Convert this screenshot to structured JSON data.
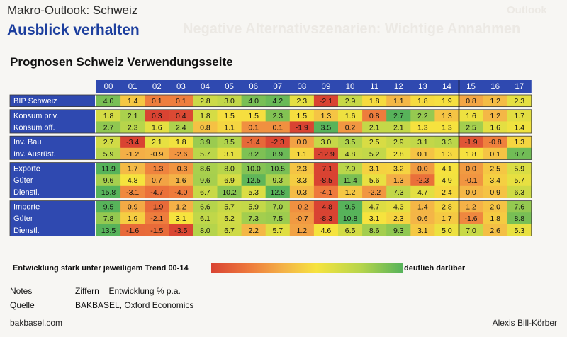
{
  "header": {
    "kicker": "Makro-Outlook: Schweiz",
    "headline": "Ausblick verhalten",
    "subtitle": "Prognosen Schweiz Verwendungsseite"
  },
  "background_ghost": {
    "line1": "Outlook",
    "line2": "Negative Alternativszenarien: Wichtige Annahmen"
  },
  "colors": {
    "header_blue": "#2f49b0",
    "scale_low": "#d94332",
    "scale_mid": "#f6e33e",
    "scale_high": "#57b35a"
  },
  "table": {
    "years": [
      "00",
      "01",
      "02",
      "03",
      "04",
      "05",
      "06",
      "07",
      "08",
      "09",
      "10",
      "11",
      "12",
      "13",
      "14",
      "15",
      "16",
      "17"
    ],
    "groups": [
      {
        "rows": [
          {
            "label": "BIP Schweiz",
            "values": [
              "4.0",
              "1.4",
              "0.1",
              "0.1",
              "2.8",
              "3.0",
              "4.0",
              "4.2",
              "2.3",
              "-2.1",
              "2.9",
              "1.8",
              "1.1",
              "1.8",
              "1.9",
              "0.8",
              "1.2",
              "2.3"
            ]
          }
        ]
      },
      {
        "rows": [
          {
            "label": "Konsum priv.",
            "values": [
              "1.8",
              "2.1",
              "0.3",
              "0.4",
              "1.8",
              "1.5",
              "1.5",
              "2.3",
              "1.5",
              "1.3",
              "1.6",
              "0.8",
              "2.7",
              "2.2",
              "1.3",
              "1.6",
              "1.2",
              "1.7"
            ]
          },
          {
            "label": "Konsum öff.",
            "values": [
              "2.7",
              "2.3",
              "1.6",
              "2.4",
              "0.8",
              "1.1",
              "0.1",
              "0.1",
              "-1.9",
              "3.5",
              "0.2",
              "2.1",
              "2.1",
              "1.3",
              "1.3",
              "2.5",
              "1.6",
              "1.4"
            ]
          }
        ]
      },
      {
        "rows": [
          {
            "label": "Inv. Bau",
            "values": [
              "2.7",
              "-3.4",
              "2.1",
              "1.8",
              "3.9",
              "3.5",
              "-1.4",
              "-2.3",
              "0.0",
              "3.0",
              "3.5",
              "2.5",
              "2.9",
              "3.1",
              "3.3",
              "-1.9",
              "-0.8",
              "1.3"
            ]
          },
          {
            "label": "Inv. Ausrüst.",
            "values": [
              "5.9",
              "-1.2",
              "-0.9",
              "-2.6",
              "5.7",
              "3.1",
              "8.2",
              "8.9",
              "1.1",
              "-12.9",
              "4.8",
              "5.2",
              "2.8",
              "0.1",
              "1.3",
              "1.8",
              "0.1",
              "8.7"
            ]
          }
        ]
      },
      {
        "rows": [
          {
            "label": "Exporte",
            "values": [
              "11.9",
              "1.7",
              "-1.3",
              "-0.3",
              "8.6",
              "8.0",
              "10.0",
              "10.5",
              "2.3",
              "-7.1",
              "7.9",
              "3.1",
              "3.2",
              "0.0",
              "4.1",
              "0.0",
              "2.5",
              "5.9"
            ]
          },
          {
            "label": "Güter",
            "values": [
              "9.6",
              "4.8",
              "0.7",
              "1.6",
              "9.6",
              "6.9",
              "12.5",
              "9.3",
              "3.3",
              "-8.5",
              "11.4",
              "5.6",
              "1.3",
              "-2.3",
              "4.9",
              "-0.1",
              "3.4",
              "5.7"
            ]
          },
          {
            "label": "Dienstl.",
            "values": [
              "15.8",
              "-3.1",
              "-4.7",
              "-4.0",
              "6.7",
              "10.2",
              "5.3",
              "12.8",
              "0.3",
              "-4.1",
              "1.2",
              "-2.2",
              "7.3",
              "4.7",
              "2.4",
              "0.0",
              "0.9",
              "6.3"
            ]
          }
        ]
      },
      {
        "rows": [
          {
            "label": "Importe",
            "values": [
              "9.5",
              "0.9",
              "-1.9",
              "1.2",
              "6.6",
              "5.7",
              "5.9",
              "7.0",
              "-0.2",
              "-4.8",
              "9.5",
              "4.7",
              "4.3",
              "1.4",
              "2.8",
              "1.2",
              "2.0",
              "7.6"
            ]
          },
          {
            "label": "Güter",
            "values": [
              "7.8",
              "1.9",
              "-2.1",
              "3.1",
              "6.1",
              "5.2",
              "7.3",
              "7.5",
              "-0.7",
              "-8.3",
              "10.8",
              "3.1",
              "2.3",
              "0.6",
              "1.7",
              "-1.6",
              "1.8",
              "8.8"
            ]
          },
          {
            "label": "Dienstl.",
            "values": [
              "13.5",
              "-1.6",
              "-1.5",
              "-3.5",
              "8.0",
              "6.7",
              "2.2",
              "5.7",
              "1.2",
              "4.6",
              "6.5",
              "8.6",
              "9.3",
              "3.1",
              "5.0",
              "7.0",
              "2.6",
              "5.3"
            ]
          }
        ]
      }
    ]
  },
  "legend": {
    "low": "Entwicklung stark unter jeweiligem Trend 00-14",
    "high": "deutlich darüber"
  },
  "notes": {
    "notes_label": "Notes",
    "notes_text": "Ziffern = Entwicklung % p.a.",
    "source_label": "Quelle",
    "source_text": "BAKBASEL, Oxford Economics"
  },
  "footer": {
    "left": "bakbasel.com",
    "right": "Alexis Bill-Körber"
  }
}
